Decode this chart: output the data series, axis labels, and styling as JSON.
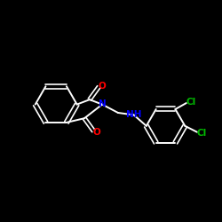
{
  "background_color": "#000000",
  "bond_color": "#ffffff",
  "atom_colors": {
    "O": "#ff0000",
    "N": "#0000ff",
    "Cl": "#00bb00",
    "C": "#ffffff"
  },
  "figsize": [
    2.5,
    2.5
  ],
  "dpi": 100
}
